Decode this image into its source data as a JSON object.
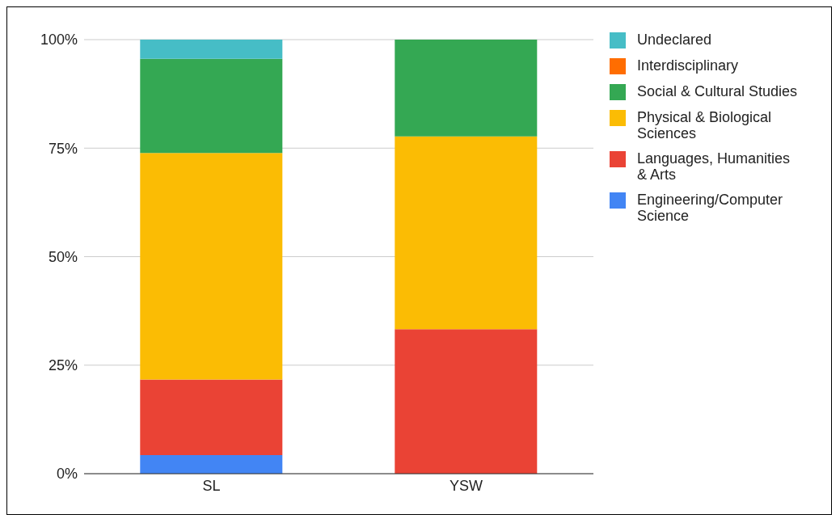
{
  "chart_data": {
    "type": "bar",
    "stacked": true,
    "categories": [
      "SL",
      "YSW"
    ],
    "series": [
      {
        "name": "Engineering/Computer Science",
        "color": "#4285f4",
        "values": [
          4.3,
          0
        ]
      },
      {
        "name": "Languages, Humanities & Arts",
        "color": "#ea4335",
        "values": [
          17.4,
          33.3
        ]
      },
      {
        "name": "Physical & Biological Sciences",
        "color": "#fbbc04",
        "values": [
          52.2,
          44.4
        ]
      },
      {
        "name": "Social & Cultural Studies",
        "color": "#34a853",
        "values": [
          21.7,
          22.3
        ]
      },
      {
        "name": "Interdisciplinary",
        "color": "#ff6d01",
        "values": [
          0,
          0
        ]
      },
      {
        "name": "Undeclared",
        "color": "#46bdc6",
        "values": [
          4.4,
          0
        ]
      }
    ],
    "ylim": [
      0,
      100
    ],
    "yticks": [
      {
        "value": 0,
        "label": "0%"
      },
      {
        "value": 25,
        "label": "25%"
      },
      {
        "value": 50,
        "label": "50%"
      },
      {
        "value": 75,
        "label": "75%"
      },
      {
        "value": 100,
        "label": "100%"
      }
    ],
    "grid": "y",
    "legend": "right"
  }
}
